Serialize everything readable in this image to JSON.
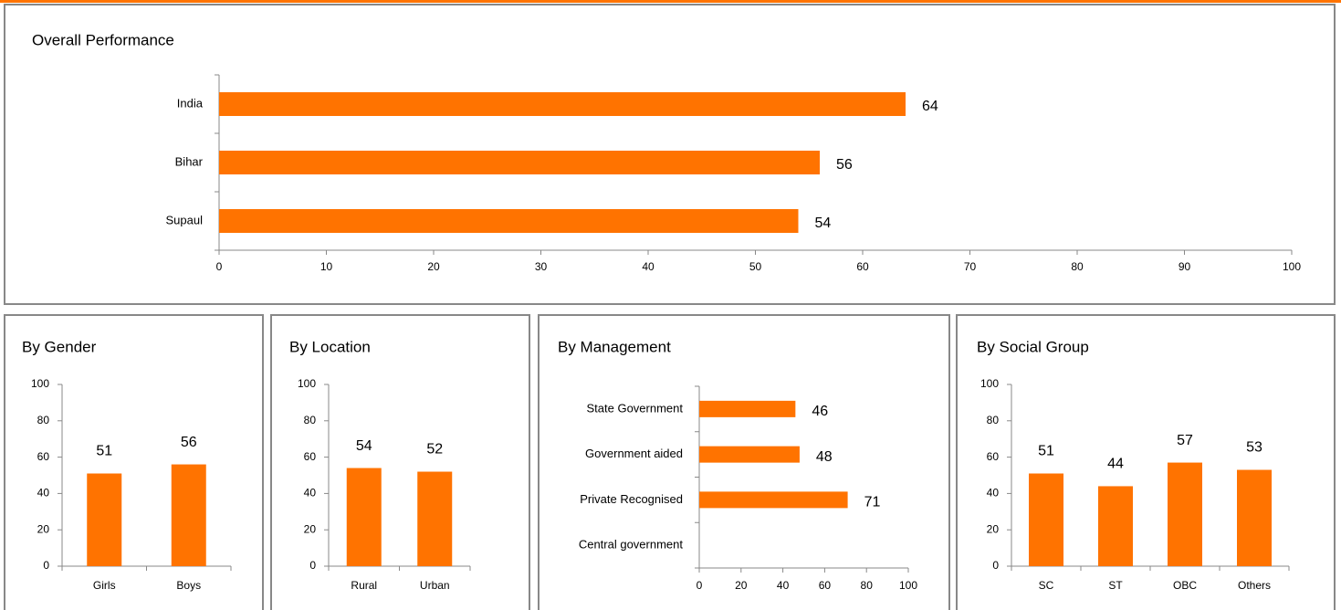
{
  "chart_data": [
    {
      "type": "hbar",
      "title": "Overall Performance",
      "categories": [
        "India",
        "Bihar",
        "Supaul"
      ],
      "values": [
        64,
        56,
        54
      ],
      "color": "#ff7300",
      "xlim": [
        0,
        100
      ],
      "xticks": [
        0,
        10,
        20,
        30,
        40,
        50,
        60,
        70,
        80,
        90,
        100
      ]
    },
    {
      "type": "bar",
      "title": "By Gender",
      "categories": [
        "Girls",
        "Boys"
      ],
      "values": [
        51,
        56
      ],
      "color": "#ff7300",
      "ylim": [
        0,
        100
      ],
      "yticks": [
        0,
        20,
        40,
        60,
        80,
        100
      ]
    },
    {
      "type": "bar",
      "title": "By Location",
      "categories": [
        "Rural",
        "Urban"
      ],
      "values": [
        54,
        52
      ],
      "color": "#ff7300",
      "ylim": [
        0,
        100
      ],
      "yticks": [
        0,
        20,
        40,
        60,
        80,
        100
      ]
    },
    {
      "type": "hbar",
      "title": "By Management",
      "categories": [
        "State Government",
        "Government aided",
        "Private Recognised",
        "Central government"
      ],
      "values": [
        46,
        48,
        71,
        null
      ],
      "color": "#ff7300",
      "xlim": [
        0,
        100
      ],
      "xticks": [
        0,
        20,
        40,
        60,
        80,
        100
      ]
    },
    {
      "type": "bar",
      "title": "By Social Group",
      "categories": [
        "SC",
        "ST",
        "OBC",
        "Others"
      ],
      "values": [
        51,
        44,
        57,
        53
      ],
      "color": "#ff7300",
      "ylim": [
        0,
        100
      ],
      "yticks": [
        0,
        20,
        40,
        60,
        80,
        100
      ]
    }
  ]
}
